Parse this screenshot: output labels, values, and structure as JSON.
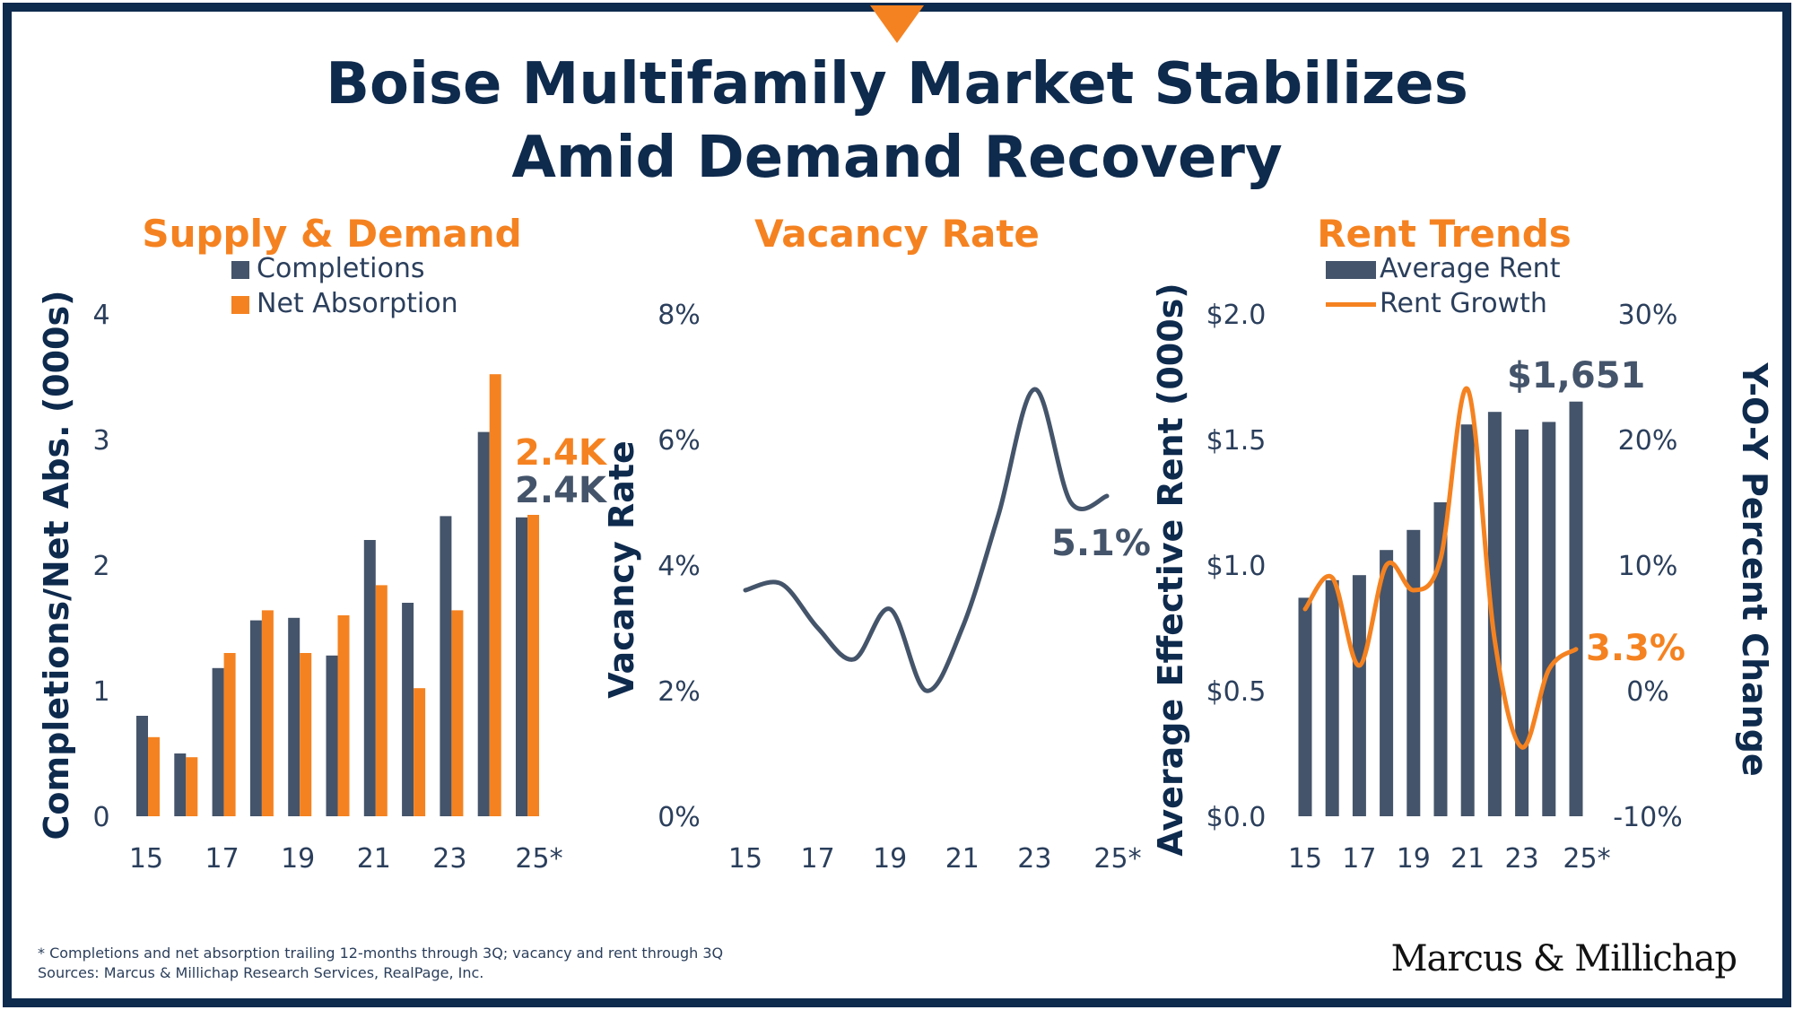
{
  "title_line1": "Boise Multifamily Market Stabilizes",
  "title_line2": "Amid Demand Recovery",
  "footnote": "* Completions and net absorption trailing 12-months through 3Q; vacancy and rent through 3Q",
  "sources": "Sources: Marcus & Millichap Research Services, RealPage, Inc.",
  "logo": "Marcus & Millichap",
  "colors": {
    "navy": "#44546a",
    "orange": "#f58220",
    "title": "#0e2a4d",
    "frame": "#0e2a4d"
  },
  "chart_data": [
    {
      "type": "bar",
      "title": "Supply & Demand",
      "ylabel": "Completions/Net Abs. (000s)",
      "ylim": [
        0,
        4
      ],
      "yticks": [
        "0",
        "1",
        "2",
        "3",
        "4"
      ],
      "xticks": [
        "15",
        "17",
        "19",
        "21",
        "23",
        "25*"
      ],
      "categories": [
        "15",
        "16",
        "17",
        "18",
        "19",
        "20",
        "21",
        "22",
        "23",
        "24",
        "25*"
      ],
      "series": [
        {
          "name": "Completions",
          "color": "#44546a",
          "values": [
            0.8,
            0.5,
            1.18,
            1.56,
            1.58,
            1.28,
            2.2,
            1.7,
            2.39,
            3.06,
            2.38
          ]
        },
        {
          "name": "Net Absorption",
          "color": "#f58220",
          "values": [
            0.63,
            0.47,
            1.3,
            1.64,
            1.3,
            1.6,
            1.84,
            1.02,
            1.64,
            3.52,
            2.4
          ]
        }
      ],
      "annotations": [
        {
          "text": "2.4K",
          "color": "#f58220"
        },
        {
          "text": "2.4K",
          "color": "#44546a"
        }
      ],
      "legend": "top"
    },
    {
      "type": "line",
      "title": "Vacancy Rate",
      "ylabel": "Vacancy Rate",
      "ylim": [
        0,
        8
      ],
      "yticks": [
        "0%",
        "2%",
        "4%",
        "6%",
        "8%"
      ],
      "xticks": [
        "15",
        "17",
        "19",
        "21",
        "23",
        "25*"
      ],
      "x": [
        2015,
        2016,
        2017,
        2018,
        2019,
        2020,
        2021,
        2022,
        2023,
        2024,
        2025
      ],
      "series": [
        {
          "color": "#44546a",
          "values": [
            3.6,
            3.7,
            3.0,
            2.5,
            3.3,
            2.0,
            3.0,
            4.8,
            6.8,
            5.0,
            5.1
          ]
        }
      ],
      "annotations": [
        {
          "text": "5.1%",
          "color": "#44546a"
        }
      ]
    },
    {
      "type": "bar",
      "title": "Rent Trends",
      "ylabel": "Average Effective Rent (000s)",
      "y2label": "Y-O-Y Percent Change",
      "ylim": [
        0,
        2
      ],
      "y2lim": [
        -10,
        30
      ],
      "yticks": [
        "$0.0",
        "$0.5",
        "$1.0",
        "$1.5",
        "$2.0"
      ],
      "y2ticks": [
        "-10%",
        "0%",
        "10%",
        "20%",
        "30%"
      ],
      "xticks": [
        "15",
        "17",
        "19",
        "21",
        "23",
        "25*"
      ],
      "categories": [
        "15",
        "16",
        "17",
        "18",
        "19",
        "20",
        "21",
        "22",
        "23",
        "24",
        "25*"
      ],
      "series": [
        {
          "name": "Average Rent",
          "type": "bar",
          "color": "#44546a",
          "values": [
            0.87,
            0.94,
            0.96,
            1.06,
            1.14,
            1.25,
            1.56,
            1.61,
            1.54,
            1.57,
            1.651
          ]
        },
        {
          "name": "Rent Growth",
          "type": "line",
          "axis": "right",
          "color": "#f58220",
          "values": [
            6.5,
            9.0,
            2.0,
            10.0,
            8.0,
            10.5,
            24.0,
            4.0,
            -4.5,
            1.7,
            3.3
          ]
        }
      ],
      "annotations": [
        {
          "text": "$1,651",
          "color": "#44546a"
        },
        {
          "text": "3.3%",
          "color": "#f58220"
        }
      ],
      "legend": "top"
    }
  ]
}
